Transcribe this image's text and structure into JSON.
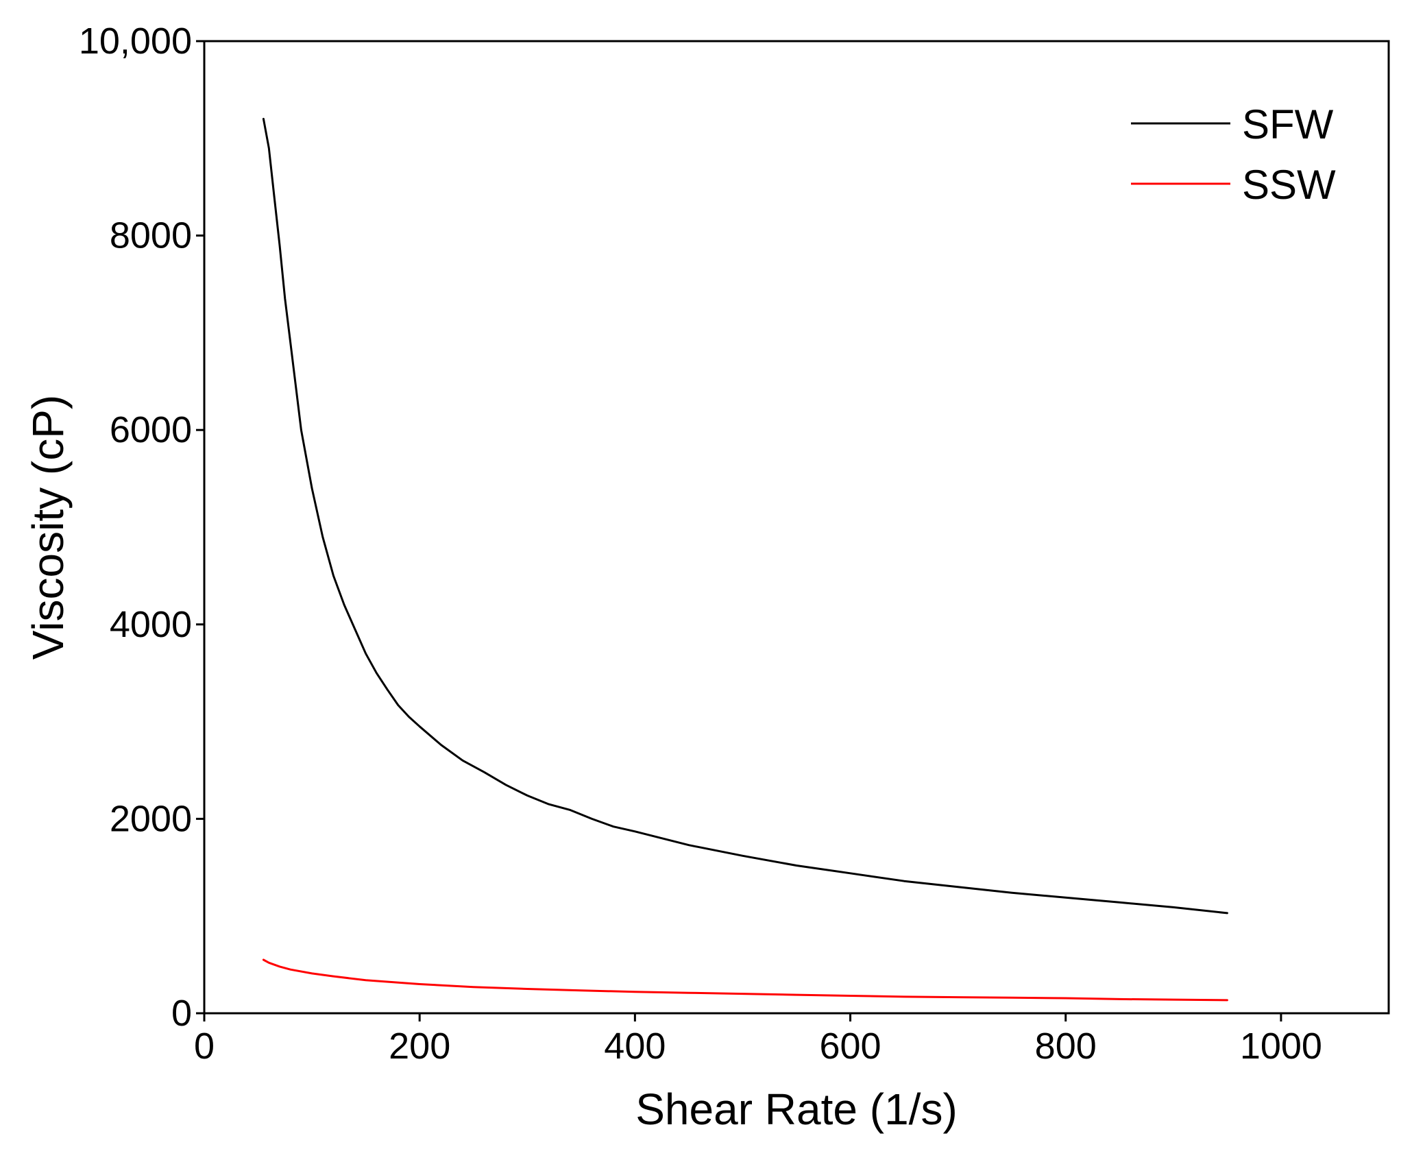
{
  "chart_data": {
    "type": "line",
    "title": "",
    "xlabel": "Shear Rate (1/s)",
    "ylabel": "Viscosity (cP)",
    "xlim": [
      0,
      1100
    ],
    "ylim": [
      0,
      10000
    ],
    "x_ticks": [
      {
        "value": 0,
        "label": "0"
      },
      {
        "value": 200,
        "label": "200"
      },
      {
        "value": 400,
        "label": "400"
      },
      {
        "value": 600,
        "label": "600"
      },
      {
        "value": 800,
        "label": "800"
      },
      {
        "value": 1000,
        "label": "1000"
      }
    ],
    "y_ticks": [
      {
        "value": 0,
        "label": "0"
      },
      {
        "value": 2000,
        "label": "2000"
      },
      {
        "value": 4000,
        "label": "4000"
      },
      {
        "value": 6000,
        "label": "6000"
      },
      {
        "value": 8000,
        "label": "8000"
      },
      {
        "value": 10000,
        "label": "10,000"
      }
    ],
    "grid": false,
    "legend_position": "top-right",
    "series": [
      {
        "name": "SFW",
        "color": "#000000",
        "x": [
          55,
          60,
          65,
          70,
          75,
          80,
          90,
          100,
          110,
          120,
          130,
          140,
          150,
          160,
          170,
          180,
          190,
          200,
          220,
          240,
          260,
          280,
          300,
          320,
          340,
          360,
          380,
          400,
          450,
          500,
          550,
          600,
          650,
          700,
          750,
          800,
          850,
          900,
          950
        ],
        "y": [
          9200,
          8900,
          8400,
          7900,
          7350,
          6900,
          6000,
          5400,
          4900,
          4500,
          4200,
          3950,
          3700,
          3500,
          3330,
          3170,
          3050,
          2950,
          2760,
          2600,
          2480,
          2350,
          2240,
          2150,
          2090,
          2000,
          1920,
          1870,
          1730,
          1620,
          1520,
          1440,
          1360,
          1300,
          1240,
          1190,
          1140,
          1090,
          1030
        ]
      },
      {
        "name": "SSW",
        "color": "#ff0000",
        "x": [
          55,
          60,
          70,
          80,
          100,
          120,
          150,
          200,
          250,
          300,
          350,
          400,
          450,
          500,
          550,
          600,
          650,
          700,
          750,
          800,
          850,
          900,
          950
        ],
        "y": [
          550,
          520,
          480,
          450,
          410,
          380,
          340,
          300,
          270,
          250,
          235,
          220,
          210,
          200,
          190,
          180,
          170,
          165,
          160,
          155,
          145,
          140,
          135
        ]
      }
    ]
  }
}
